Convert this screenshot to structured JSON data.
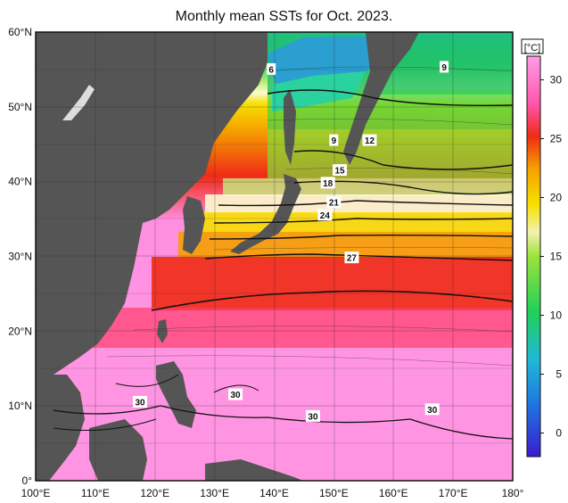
{
  "title": "Monthly mean SSTs for Oct. 2023.",
  "map": {
    "lon_range": [
      100,
      180
    ],
    "lat_range": [
      0,
      60
    ],
    "lon_ticks": [
      "100°E",
      "110°E",
      "120°E",
      "130°E",
      "140°E",
      "150°E",
      "160°E",
      "170°E",
      "180°"
    ],
    "lat_ticks": [
      "0°",
      "10°N",
      "20°N",
      "30°N",
      "40°N",
      "50°N",
      "60°N"
    ],
    "land_color": "#555555",
    "grid": true
  },
  "colorbar": {
    "unit": "[°C]",
    "ticks": [
      "0",
      "5",
      "10",
      "15",
      "20",
      "25",
      "30"
    ],
    "stops": [
      "#3b1ccf",
      "#1f6fe0",
      "#20b7d7",
      "#1fd05a",
      "#9be33a",
      "#f2f2b0",
      "#f7e000",
      "#f5a000",
      "#ef2b15",
      "#ff55aa",
      "#ff9de8"
    ]
  },
  "contour_labels": [
    {
      "text": "6",
      "lon": 139.5,
      "lat": 55.0
    },
    {
      "text": "9",
      "lon": 168.5,
      "lat": 55.3
    },
    {
      "text": "9",
      "lon": 150.0,
      "lat": 45.5
    },
    {
      "text": "12",
      "lon": 156.0,
      "lat": 45.5
    },
    {
      "text": "15",
      "lon": 151.0,
      "lat": 41.5
    },
    {
      "text": "18",
      "lon": 149.0,
      "lat": 39.8
    },
    {
      "text": "21",
      "lon": 150.0,
      "lat": 37.2
    },
    {
      "text": "24",
      "lon": 148.5,
      "lat": 35.5
    },
    {
      "text": "27",
      "lon": 153.0,
      "lat": 29.8
    },
    {
      "text": "30",
      "lon": 117.5,
      "lat": 10.5
    },
    {
      "text": "30",
      "lon": 133.5,
      "lat": 11.5
    },
    {
      "text": "30",
      "lon": 146.5,
      "lat": 8.6
    },
    {
      "text": "30",
      "lon": 166.5,
      "lat": 9.5
    }
  ]
}
